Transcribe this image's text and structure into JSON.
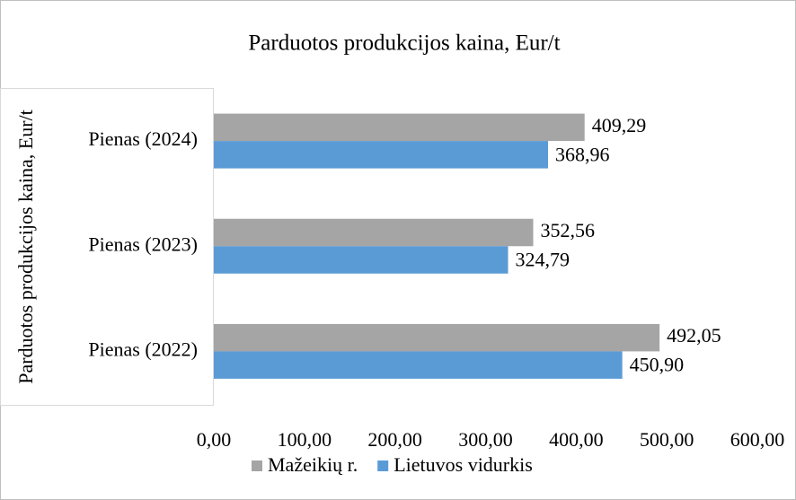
{
  "chart_data": {
    "type": "hbar",
    "title": "Parduotos produkcijos kaina, Eur/t",
    "y_label": "Parduotos produkcijos kaina, Eur/t",
    "categories": [
      "Pienas  (2022)",
      "Pienas  (2023)",
      "Pienas  (2024)"
    ],
    "series": [
      {
        "name": "Mažeikių r.",
        "color": "#a5a5a5",
        "values": [
          492.05,
          352.56,
          409.29
        ],
        "value_labels": [
          "492,05",
          "352,56",
          "409,29"
        ]
      },
      {
        "name": "Lietuvos vidurkis",
        "color": "#5b9bd5",
        "values": [
          450.9,
          324.79,
          368.96
        ],
        "value_labels": [
          "450,90",
          "324,79",
          "368,96"
        ]
      }
    ],
    "xlim": [
      0,
      600
    ],
    "xticks": [
      {
        "value": 0,
        "label": "0,00"
      },
      {
        "value": 100,
        "label": "100,00"
      },
      {
        "value": 200,
        "label": "200,00"
      },
      {
        "value": 300,
        "label": "300,00"
      },
      {
        "value": 400,
        "label": "400,00"
      },
      {
        "value": 500,
        "label": "500,00"
      },
      {
        "value": 600,
        "label": "600,00"
      }
    ],
    "grid": false,
    "legend": "bottom"
  }
}
